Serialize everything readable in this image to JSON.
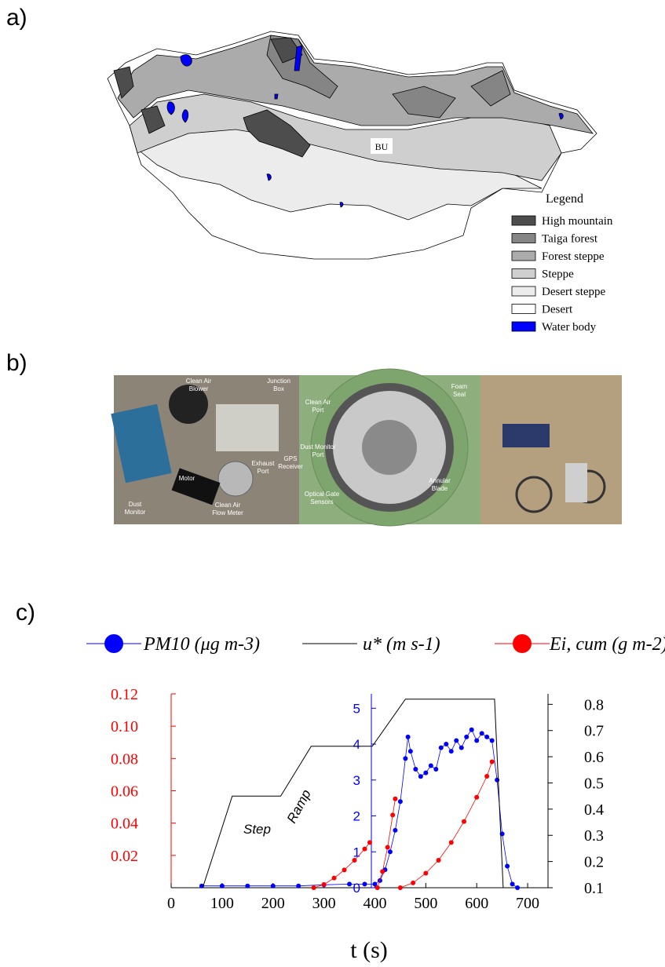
{
  "panels": [
    "a)",
    "b)",
    "c)"
  ],
  "map": {
    "label": "BU",
    "legend": {
      "title": "Legend",
      "items": [
        {
          "name": "High mountain",
          "color": "#4d4d4d"
        },
        {
          "name": "Taiga forest",
          "color": "#858585"
        },
        {
          "name": "Forest steppe",
          "color": "#ababab"
        },
        {
          "name": "Steppe",
          "color": "#cfcfcf"
        },
        {
          "name": "Desert steppe",
          "color": "#ececec"
        },
        {
          "name": "Desert",
          "color": "#ffffff"
        },
        {
          "name": "Water body",
          "color": "#0000ff"
        }
      ]
    }
  },
  "photos": [
    [
      [
        "Clean Air",
        "Blower"
      ],
      [
        "Junction",
        "Box"
      ],
      [
        "GPS",
        "Receiver"
      ],
      [
        "Exhaust",
        "Port"
      ],
      [
        "Motor"
      ],
      [
        "Dust",
        "Monitor"
      ],
      [
        "Clean Air",
        "Flow Meter"
      ]
    ],
    [
      [
        "Clean Air",
        "Port"
      ],
      [
        "Foam",
        "Seal"
      ],
      [
        "Dust Monitor",
        "Port"
      ],
      [
        "Annular",
        "Blade"
      ],
      [
        "Optical Gate",
        "Sensors"
      ]
    ],
    []
  ],
  "chart_data": {
    "type": "line",
    "x_label": "t (s)",
    "annotations": [
      "Step",
      "Ramp"
    ],
    "xlim": [
      0,
      740
    ],
    "xticks": [
      0,
      100,
      200,
      300,
      400,
      500,
      600,
      700
    ],
    "ylim": [
      0,
      0.12
    ],
    "yticks": [
      0.02,
      0.04,
      0.06,
      0.08,
      {
        "value": 0.1,
        "label": "0.10"
      },
      0.12
    ],
    "y2lim": [
      0.1,
      0.84
    ],
    "y2ticks": [
      0.1,
      0.2,
      0.3,
      0.4,
      0.5,
      0.6,
      0.7,
      0.8
    ],
    "y3lim": [
      0,
      5.4
    ],
    "y3ticks": [
      0,
      1,
      2,
      3,
      4,
      5
    ],
    "series": [
      {
        "name": "PM10 (μg m-3)",
        "color": "#0000ff",
        "axis": "y3",
        "marker": true,
        "x": [
          60,
          100,
          150,
          200,
          250,
          300,
          350,
          380,
          400,
          410,
          420,
          430,
          440,
          450,
          460,
          465,
          470,
          480,
          490,
          500,
          510,
          520,
          530,
          540,
          550,
          560,
          570,
          580,
          590,
          600,
          610,
          620,
          630,
          640,
          650,
          660,
          670,
          680
        ],
        "values": [
          0.05,
          0.05,
          0.05,
          0.05,
          0.05,
          0.08,
          0.1,
          0.1,
          0.1,
          0.2,
          0.5,
          1.0,
          1.6,
          2.4,
          3.6,
          4.2,
          3.8,
          3.3,
          3.1,
          3.2,
          3.4,
          3.3,
          3.9,
          4.0,
          3.8,
          4.1,
          3.9,
          4.2,
          4.4,
          4.1,
          4.3,
          4.2,
          4.1,
          3.0,
          1.5,
          0.6,
          0.1,
          0.0
        ]
      },
      {
        "name": "u* (m s-1)",
        "color": "#000000",
        "axis": "y2",
        "marker": false,
        "x": [
          62,
          120,
          215,
          275,
          395,
          460,
          635,
          652
        ],
        "values": [
          0.1,
          0.45,
          0.45,
          0.64,
          0.64,
          0.82,
          0.82,
          0.1
        ]
      },
      {
        "name": "Ei, cum (g m-2)",
        "color": "#ff0000",
        "axis": "y",
        "marker": true,
        "x": [
          280,
          300,
          320,
          340,
          360,
          380,
          390,
          395,
          405,
          415,
          425,
          435,
          440,
          445,
          450,
          475,
          500,
          525,
          550,
          575,
          600,
          620,
          630
        ],
        "values": [
          0,
          0.002,
          0.006,
          0.011,
          0.017,
          0.024,
          0.028,
          null,
          0,
          0.01,
          0.025,
          0.045,
          0.055,
          null,
          0,
          0.003,
          0.009,
          0.017,
          0.028,
          0.041,
          0.056,
          0.069,
          0.078
        ]
      }
    ]
  }
}
